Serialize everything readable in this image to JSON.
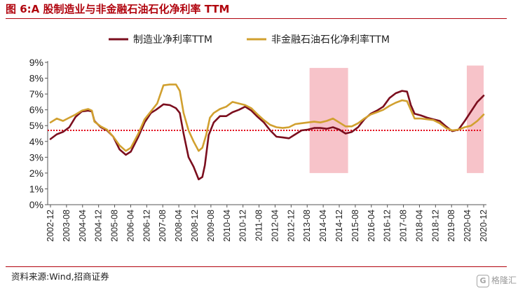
{
  "title": "图 6:A 股制造业与非金融石油石化净利率 TTM",
  "source": "资料来源:Wind,招商证券",
  "watermark": {
    "logo_text": "G",
    "text": "格隆汇"
  },
  "chart_data": {
    "type": "line",
    "categories": [
      "2002-12",
      "2003-08",
      "2004-04",
      "2004-12",
      "2005-08",
      "2006-04",
      "2006-12",
      "2007-08",
      "2008-04",
      "2008-12",
      "2009-08",
      "2010-04",
      "2010-12",
      "2011-08",
      "2012-04",
      "2012-12",
      "2013-08",
      "2014-04",
      "2014-12",
      "2015-08",
      "2016-04",
      "2016-12",
      "2017-08",
      "2018-04",
      "2018-12",
      "2019-08",
      "2020-04",
      "2020-12"
    ],
    "ylim": [
      0,
      9
    ],
    "yticks": [
      "0%",
      "1%",
      "2%",
      "3%",
      "4%",
      "5%",
      "6%",
      "7%",
      "8%",
      "9%"
    ],
    "legend_position": "top",
    "reference_line": {
      "value": 4.7,
      "style": "dotted",
      "color": "#e3001b"
    },
    "highlight_bands": [
      {
        "start": 16.15,
        "end": 18.55,
        "ymin": 2.0,
        "ymax": 8.65,
        "color": "#f6b9bf"
      },
      {
        "start": 25.95,
        "end": 27.0,
        "ymin": 2.0,
        "ymax": 8.8,
        "color": "#f6b9bf"
      }
    ],
    "series": [
      {
        "name": "制造业净利率TTM",
        "color": "#7b0e1e",
        "points": [
          [
            0,
            4.15
          ],
          [
            0.5,
            4.45
          ],
          [
            1,
            4.6
          ],
          [
            1.5,
            4.9
          ],
          [
            2,
            5.55
          ],
          [
            2.5,
            5.9
          ],
          [
            3,
            5.95
          ],
          [
            3.3,
            5.9
          ],
          [
            3.5,
            5.3
          ],
          [
            4,
            4.9
          ],
          [
            4.5,
            4.7
          ],
          [
            5,
            4.3
          ],
          [
            5.5,
            3.5
          ],
          [
            6,
            3.15
          ],
          [
            6.4,
            3.35
          ],
          [
            7,
            4.3
          ],
          [
            7.5,
            5.2
          ],
          [
            8,
            5.8
          ],
          [
            8.4,
            6.0
          ],
          [
            9,
            6.35
          ],
          [
            9.5,
            6.3
          ],
          [
            10,
            6.1
          ],
          [
            10.3,
            5.8
          ],
          [
            10.6,
            4.5
          ],
          [
            11,
            3.0
          ],
          [
            11.4,
            2.4
          ],
          [
            11.8,
            1.6
          ],
          [
            12.1,
            1.75
          ],
          [
            12.3,
            2.5
          ],
          [
            12.6,
            4.4
          ],
          [
            13,
            5.2
          ],
          [
            13.5,
            5.6
          ],
          [
            14,
            5.6
          ],
          [
            14.5,
            5.85
          ],
          [
            15,
            6.0
          ],
          [
            15.5,
            6.2
          ],
          [
            16,
            5.95
          ],
          [
            16.5,
            5.55
          ],
          [
            17,
            5.2
          ],
          [
            17.5,
            4.7
          ],
          [
            18,
            4.3
          ],
          [
            18.5,
            4.25
          ],
          [
            19,
            4.2
          ],
          [
            19.5,
            4.45
          ],
          [
            20,
            4.7
          ],
          [
            20.5,
            4.75
          ],
          [
            21,
            4.85
          ],
          [
            21.5,
            4.85
          ],
          [
            22,
            4.8
          ],
          [
            22.5,
            4.9
          ],
          [
            23,
            4.75
          ],
          [
            23.5,
            4.5
          ],
          [
            24,
            4.6
          ],
          [
            24.5,
            4.9
          ],
          [
            25,
            5.4
          ],
          [
            25.5,
            5.75
          ],
          [
            26,
            5.95
          ],
          [
            26.5,
            6.2
          ],
          [
            27,
            6.75
          ],
          [
            27.5,
            7.05
          ],
          [
            28,
            7.2
          ],
          [
            28.4,
            7.15
          ],
          [
            28.7,
            6.3
          ],
          [
            29,
            5.75
          ],
          [
            29.5,
            5.65
          ],
          [
            30,
            5.5
          ],
          [
            30.5,
            5.4
          ],
          [
            31,
            5.3
          ],
          [
            31.5,
            4.95
          ],
          [
            32,
            4.65
          ],
          [
            32.5,
            4.75
          ],
          [
            33,
            5.3
          ],
          [
            33.5,
            5.9
          ],
          [
            34,
            6.5
          ],
          [
            34.5,
            6.9
          ]
        ]
      },
      {
        "name": "非金融石油石化净利率TTM",
        "color": "#d1a02f",
        "points": [
          [
            0,
            5.2
          ],
          [
            0.5,
            5.45
          ],
          [
            1,
            5.3
          ],
          [
            1.5,
            5.5
          ],
          [
            2,
            5.7
          ],
          [
            2.5,
            5.95
          ],
          [
            3,
            6.05
          ],
          [
            3.3,
            5.95
          ],
          [
            3.5,
            5.25
          ],
          [
            4,
            4.95
          ],
          [
            4.5,
            4.75
          ],
          [
            5,
            4.3
          ],
          [
            5.5,
            3.75
          ],
          [
            6,
            3.4
          ],
          [
            6.4,
            3.6
          ],
          [
            7,
            4.5
          ],
          [
            7.5,
            5.4
          ],
          [
            8,
            5.9
          ],
          [
            8.5,
            6.4
          ],
          [
            9,
            7.55
          ],
          [
            9.5,
            7.6
          ],
          [
            10,
            7.6
          ],
          [
            10.3,
            7.2
          ],
          [
            10.6,
            5.8
          ],
          [
            11,
            4.7
          ],
          [
            11.4,
            4.0
          ],
          [
            11.8,
            3.4
          ],
          [
            12.1,
            3.6
          ],
          [
            12.4,
            4.4
          ],
          [
            12.7,
            5.5
          ],
          [
            13,
            5.8
          ],
          [
            13.5,
            6.05
          ],
          [
            14,
            6.2
          ],
          [
            14.5,
            6.5
          ],
          [
            15,
            6.4
          ],
          [
            15.5,
            6.3
          ],
          [
            16,
            6.1
          ],
          [
            16.5,
            5.7
          ],
          [
            17,
            5.35
          ],
          [
            17.5,
            5.05
          ],
          [
            18,
            4.9
          ],
          [
            18.5,
            4.85
          ],
          [
            19,
            4.9
          ],
          [
            19.5,
            5.1
          ],
          [
            20,
            5.15
          ],
          [
            20.5,
            5.2
          ],
          [
            21,
            5.25
          ],
          [
            21.5,
            5.2
          ],
          [
            22,
            5.3
          ],
          [
            22.5,
            5.45
          ],
          [
            23,
            5.2
          ],
          [
            23.5,
            4.95
          ],
          [
            24,
            4.95
          ],
          [
            24.5,
            5.15
          ],
          [
            25,
            5.45
          ],
          [
            25.5,
            5.7
          ],
          [
            26,
            5.85
          ],
          [
            26.5,
            6.0
          ],
          [
            27,
            6.25
          ],
          [
            27.5,
            6.45
          ],
          [
            28,
            6.6
          ],
          [
            28.4,
            6.55
          ],
          [
            28.7,
            6.0
          ],
          [
            29,
            5.45
          ],
          [
            29.5,
            5.45
          ],
          [
            30,
            5.4
          ],
          [
            30.5,
            5.35
          ],
          [
            31,
            5.15
          ],
          [
            31.5,
            4.85
          ],
          [
            32,
            4.7
          ],
          [
            32.5,
            4.75
          ],
          [
            33,
            4.9
          ],
          [
            33.5,
            5.0
          ],
          [
            34,
            5.3
          ],
          [
            34.5,
            5.7
          ]
        ]
      }
    ]
  }
}
